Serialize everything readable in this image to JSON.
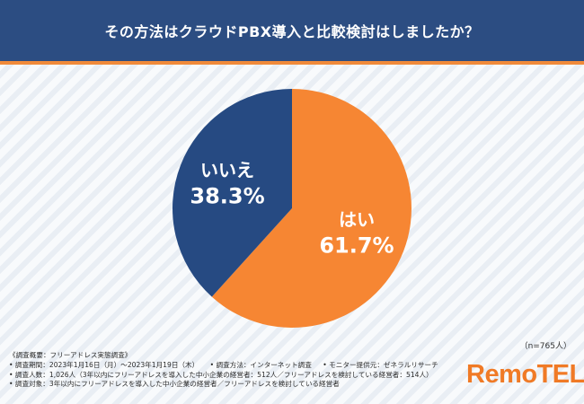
{
  "chart_data": {
    "type": "pie",
    "title": "その方法はクラウドPBX導入と比較検討はしましたか？",
    "categories": [
      "はい",
      "いいえ"
    ],
    "values": [
      61.7,
      38.3
    ],
    "value_labels": [
      "61.7%",
      "38.3%"
    ],
    "colors": [
      "#f68633",
      "#264a82"
    ],
    "sample_size": "（n=765人）"
  },
  "footer": {
    "lines": [
      [
        "《調査概要：フリーアドレス実態調査》"
      ],
      [
        "• 調査期間：2023年1月16日（月）〜2023年1月19日（木）",
        "• 調査方法：インターネット調査",
        "• モニター提供元：ゼネラルリサーチ"
      ],
      [
        "• 調査人数：1,026人（3年以内にフリーアドレスを導入した中小企業の経営者：512人／フリーアドレスを検討している経営者：514人）"
      ],
      [
        "• 調査対象：3年以内にフリーアドレスを導入した中小企業の経営者／フリーアドレスを検討している経営者"
      ]
    ]
  },
  "brand": {
    "name": "RemoTEL",
    "mark": "®",
    "color": "#f07a26"
  }
}
